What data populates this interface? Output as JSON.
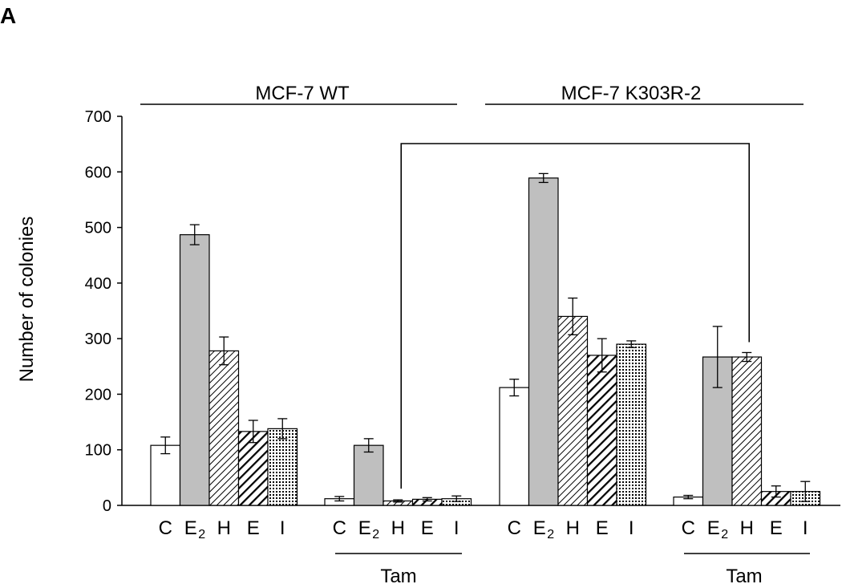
{
  "panel_label": "A",
  "chart_data": {
    "type": "bar",
    "ylabel": "Number of colonies",
    "ylim": [
      0,
      700
    ],
    "yticks": [
      "0",
      "100",
      "200",
      "300",
      "400",
      "500",
      "600",
      "700"
    ],
    "cell_lines": [
      "MCF-7 WT",
      "MCF-7 K303R-2"
    ],
    "treatment_label": "Tam",
    "categories": [
      "C",
      "E",
      "H",
      "E",
      "I"
    ],
    "category_subscript": {
      "1": "2"
    },
    "groups": [
      {
        "cell_line": "MCF-7 WT",
        "treatment": "",
        "values": [
          108,
          487,
          278,
          133,
          138
        ],
        "errors": [
          15,
          18,
          25,
          20,
          18
        ]
      },
      {
        "cell_line": "MCF-7 WT",
        "treatment": "Tam",
        "values": [
          12,
          108,
          8,
          11,
          12
        ],
        "errors": [
          4,
          12,
          2,
          3,
          5
        ]
      },
      {
        "cell_line": "MCF-7 K303R-2",
        "treatment": "",
        "values": [
          212,
          589,
          340,
          270,
          290
        ],
        "errors": [
          15,
          8,
          33,
          30,
          6
        ]
      },
      {
        "cell_line": "MCF-7 K303R-2",
        "treatment": "Tam",
        "values": [
          15,
          267,
          267,
          25,
          25
        ],
        "errors": [
          3,
          55,
          8,
          10,
          18
        ]
      }
    ],
    "fills": [
      {
        "category": "C",
        "pattern": "white",
        "color": "#ffffff"
      },
      {
        "category": "E2",
        "pattern": "solid",
        "color": "#bfbfbf"
      },
      {
        "category": "H",
        "pattern": "diagonal-fine"
      },
      {
        "category": "E",
        "pattern": "diagonal-bold"
      },
      {
        "category": "I",
        "pattern": "dots"
      }
    ],
    "comparison_bracket": {
      "from_group": 1,
      "from_category": "H",
      "to_group": 3,
      "to_category": "H"
    },
    "grid": false,
    "legend": "none"
  }
}
